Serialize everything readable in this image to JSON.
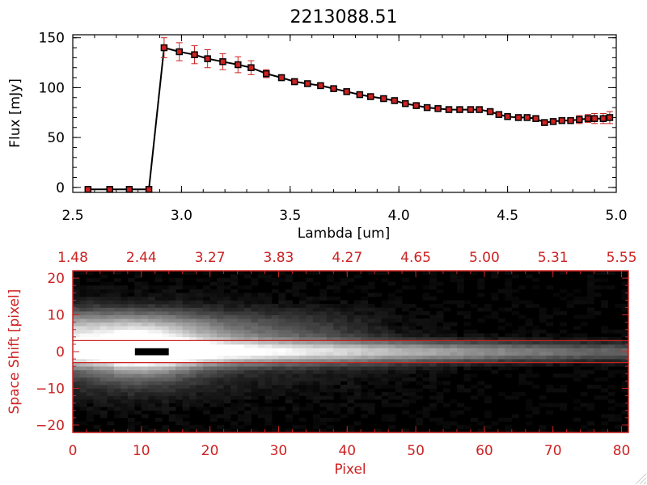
{
  "colors": {
    "top_panel": "#000000",
    "bottom_panel": "#cc2222",
    "errorbar": "#cc2222",
    "marker_fill": "#cc2222",
    "cut_lines": "#cc2222"
  },
  "chart_data": [
    {
      "type": "line",
      "title": "2213088.51",
      "xlabel": "Lambda [um]",
      "ylabel": "Flux [mJy]",
      "xlim": [
        2.5,
        5.0
      ],
      "ylim": [
        -5,
        153
      ],
      "xticks": [
        "2.5",
        "3.0",
        "3.5",
        "4.0",
        "4.5",
        "5.0"
      ],
      "xtick_values": [
        2.5,
        3.0,
        3.5,
        4.0,
        4.5,
        5.0
      ],
      "yticks": [
        "0",
        "50",
        "100",
        "150"
      ],
      "ytick_values": [
        0,
        50,
        100,
        150
      ],
      "series": [
        {
          "name": "flux",
          "x": [
            2.57,
            2.67,
            2.76,
            2.85,
            2.92,
            2.99,
            3.06,
            3.12,
            3.19,
            3.26,
            3.32,
            3.39,
            3.46,
            3.52,
            3.58,
            3.64,
            3.7,
            3.76,
            3.82,
            3.87,
            3.93,
            3.98,
            4.03,
            4.08,
            4.13,
            4.18,
            4.23,
            4.28,
            4.33,
            4.37,
            4.42,
            4.46,
            4.5,
            4.55,
            4.59,
            4.63,
            4.67,
            4.71,
            4.75,
            4.79,
            4.83,
            4.87,
            4.9,
            4.94,
            4.97
          ],
          "y": [
            -2,
            -2,
            -2,
            -2,
            140,
            136,
            133,
            129,
            126,
            123,
            120,
            114,
            110,
            106,
            104,
            102,
            99,
            96,
            93,
            91,
            89,
            87,
            84,
            82,
            80,
            79,
            78,
            78,
            78,
            78,
            76,
            73,
            71,
            70,
            70,
            69,
            65,
            66,
            67,
            67,
            68,
            69,
            69,
            69,
            70
          ],
          "yerr": [
            0,
            0,
            0,
            0,
            10,
            9,
            9,
            9,
            8,
            8,
            7,
            4,
            3,
            3,
            2,
            2,
            2,
            2,
            2,
            2,
            2,
            2,
            2,
            2,
            2,
            2,
            2,
            2,
            2,
            2,
            2,
            2,
            2,
            2,
            2,
            2,
            2,
            2,
            2,
            3,
            4,
            4,
            5,
            5,
            6
          ]
        }
      ]
    },
    {
      "type": "heatmap",
      "xlabel": "Pixel",
      "ylabel": "Space Shift [pixel]",
      "xlim": [
        0,
        81
      ],
      "ylim": [
        -22,
        22
      ],
      "xticks": [
        "0",
        "10",
        "20",
        "30",
        "40",
        "50",
        "60",
        "70",
        "80"
      ],
      "xtick_values": [
        0,
        10,
        20,
        30,
        40,
        50,
        60,
        70,
        80
      ],
      "yticks": [
        "20",
        "10",
        "0",
        "−10",
        "−20"
      ],
      "ytick_values": [
        20,
        10,
        0,
        -10,
        -20
      ],
      "top_axis_label_values": [
        "1.48",
        "2.44",
        "3.27",
        "3.83",
        "4.27",
        "4.65",
        "5.00",
        "5.31",
        "5.55"
      ],
      "top_axis_positions": [
        0,
        10,
        20,
        30,
        40,
        50,
        60,
        70,
        80
      ],
      "extraction_aperture": [
        -3,
        3
      ],
      "image_model": {
        "trace_center": 0,
        "trace_width_near": 2.5,
        "trace_width_far": 1.6,
        "halo_center": 6,
        "halo_extent_x": 48,
        "bright_peak_x": 10,
        "dark_blob_x": [
          9,
          14
        ],
        "dark_blob_y": [
          -1,
          1
        ]
      }
    }
  ]
}
